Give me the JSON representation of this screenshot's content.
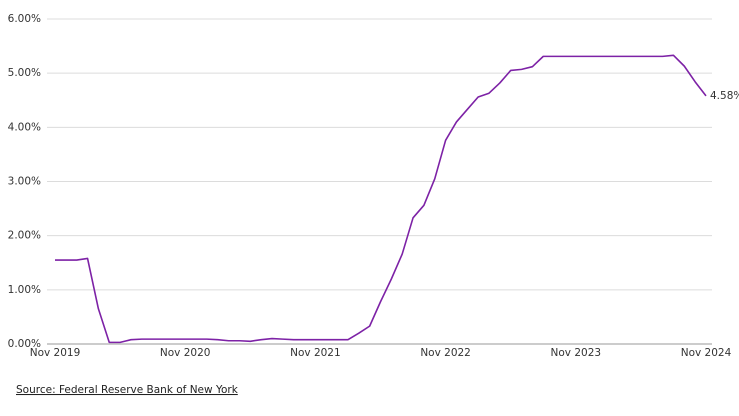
{
  "chart_data": {
    "type": "line",
    "categories": [
      "Nov 2019",
      null,
      null,
      null,
      null,
      null,
      null,
      null,
      null,
      null,
      null,
      null,
      "Nov 2020",
      null,
      null,
      null,
      null,
      null,
      null,
      null,
      null,
      null,
      null,
      null,
      "Nov 2021",
      null,
      null,
      null,
      null,
      null,
      null,
      null,
      null,
      null,
      null,
      null,
      "Nov 2022",
      null,
      null,
      null,
      null,
      null,
      null,
      null,
      null,
      null,
      null,
      null,
      "Nov 2023",
      null,
      null,
      null,
      null,
      null,
      null,
      null,
      null,
      null,
      null,
      null,
      "Nov 2024"
    ],
    "series": [
      {
        "color": "#7d22a6",
        "values": [
          1.55,
          1.55,
          1.55,
          1.58,
          0.65,
          0.03,
          0.03,
          0.08,
          0.09,
          0.09,
          0.09,
          0.09,
          0.09,
          0.09,
          0.09,
          0.08,
          0.06,
          0.06,
          0.05,
          0.08,
          0.1,
          0.09,
          0.08,
          0.08,
          0.08,
          0.08,
          0.08,
          0.08,
          0.2,
          0.33,
          0.78,
          1.2,
          1.66,
          2.33,
          2.56,
          3.05,
          3.76,
          4.1,
          4.33,
          4.56,
          4.63,
          4.82,
          5.05,
          5.07,
          5.12,
          5.31,
          5.31,
          5.31,
          5.31,
          5.31,
          5.31,
          5.31,
          5.31,
          5.31,
          5.31,
          5.31,
          5.31,
          5.33,
          5.13,
          4.84,
          4.58
        ],
        "value_labels": [
          null,
          null,
          null,
          null,
          null,
          null,
          null,
          null,
          null,
          null,
          null,
          null,
          null,
          null,
          null,
          null,
          null,
          null,
          null,
          null,
          null,
          null,
          null,
          null,
          null,
          null,
          null,
          null,
          null,
          null,
          null,
          null,
          null,
          null,
          null,
          null,
          null,
          null,
          null,
          null,
          null,
          null,
          null,
          null,
          null,
          null,
          null,
          null,
          null,
          null,
          null,
          null,
          null,
          null,
          null,
          null,
          null,
          null,
          null,
          null,
          "4.58%"
        ]
      }
    ],
    "ylim": [
      0,
      6
    ],
    "yticks": [
      {
        "value": 0,
        "label": "0.00%"
      },
      {
        "value": 1,
        "label": "1.00%"
      },
      {
        "value": 2,
        "label": "2.00%"
      },
      {
        "value": 3,
        "label": "3.00%"
      },
      {
        "value": 4,
        "label": "4.00%"
      },
      {
        "value": 5,
        "label": "5.00%"
      },
      {
        "value": 6,
        "label": "6.00%"
      }
    ],
    "grid": true,
    "source": "Source: Federal Reserve Bank of New York"
  }
}
